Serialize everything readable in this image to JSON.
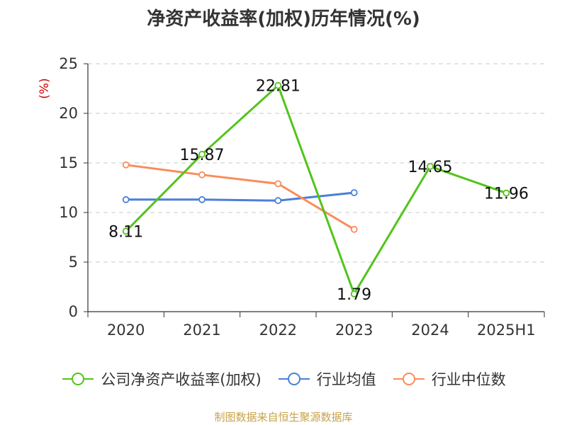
{
  "title": "净资产收益率(加权)历年情况(%)",
  "source": "制图数据来自恒生聚源数据库",
  "colors": {
    "company": "#52c41a",
    "industry_avg": "#4a7fd6",
    "industry_median": "#fa8c5a",
    "axis": "#333333",
    "grid": "#c8c8c8",
    "unit": "#cc0000"
  },
  "chart_data": {
    "type": "line",
    "title": "净资产收益率(加权)历年情况(%)",
    "ylabel": "(%)",
    "ylim": [
      0,
      25
    ],
    "yticks": [
      0,
      5,
      10,
      15,
      20,
      25
    ],
    "grid": true,
    "legend_position": "bottom",
    "categories": [
      "2020",
      "2021",
      "2022",
      "2023",
      "2024",
      "2025H1"
    ],
    "series": [
      {
        "name": "公司净资产收益率(加权)",
        "color": "#52c41a",
        "values": [
          8.11,
          15.87,
          22.81,
          1.79,
          14.65,
          11.96
        ],
        "labels": [
          "8.11",
          "15.87",
          "22.81",
          "1.79",
          "14.65",
          "11.96"
        ]
      },
      {
        "name": "行业均值",
        "color": "#4a7fd6",
        "values": [
          11.3,
          11.3,
          11.2,
          12.0,
          null,
          null
        ]
      },
      {
        "name": "行业中位数",
        "color": "#fa8c5a",
        "values": [
          14.8,
          13.8,
          12.9,
          8.3,
          null,
          null
        ]
      }
    ]
  }
}
